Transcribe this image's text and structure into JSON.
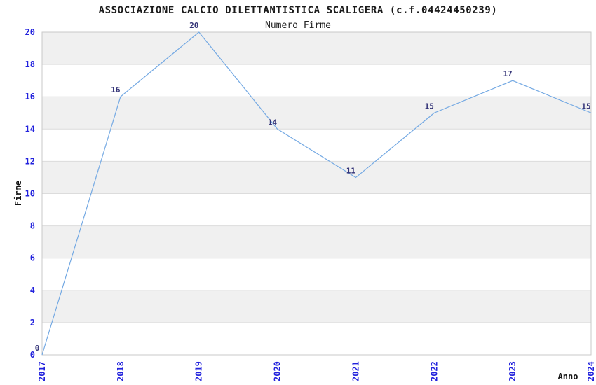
{
  "title": "ASSOCIAZIONE CALCIO DILETTANTISTICA SCALIGERA (c.f.04424450239)",
  "subtitle": "Numero Firme",
  "chart_data": {
    "type": "line",
    "categories": [
      "2017",
      "2018",
      "2019",
      "2020",
      "2021",
      "2022",
      "2023",
      "2024"
    ],
    "series": [
      {
        "name": "Numero Firme",
        "values": [
          0,
          16,
          20,
          14,
          11,
          15,
          17,
          15
        ]
      }
    ],
    "point_labels": [
      "0",
      "16",
      "20",
      "14",
      "11",
      "15",
      "17",
      "15"
    ],
    "xlabel": "Anno",
    "ylabel": "Firme",
    "ylim": [
      0,
      20
    ],
    "ytick_step": 2,
    "yticks": [
      0,
      2,
      4,
      6,
      8,
      10,
      12,
      14,
      16,
      18,
      20
    ],
    "grid": "banded-horizontal",
    "legend_position": "none",
    "colors": {
      "line": "#74A9E3",
      "tick_label": "#2222DD",
      "point_label": "#333377",
      "band_gray": "#F0F0F0",
      "band_white": "#FFFFFF",
      "gridline": "#DCDCDC",
      "plot_border": "#C9C9C9",
      "background": "#FFFFFF",
      "title_text": "#1A1A1A"
    }
  }
}
